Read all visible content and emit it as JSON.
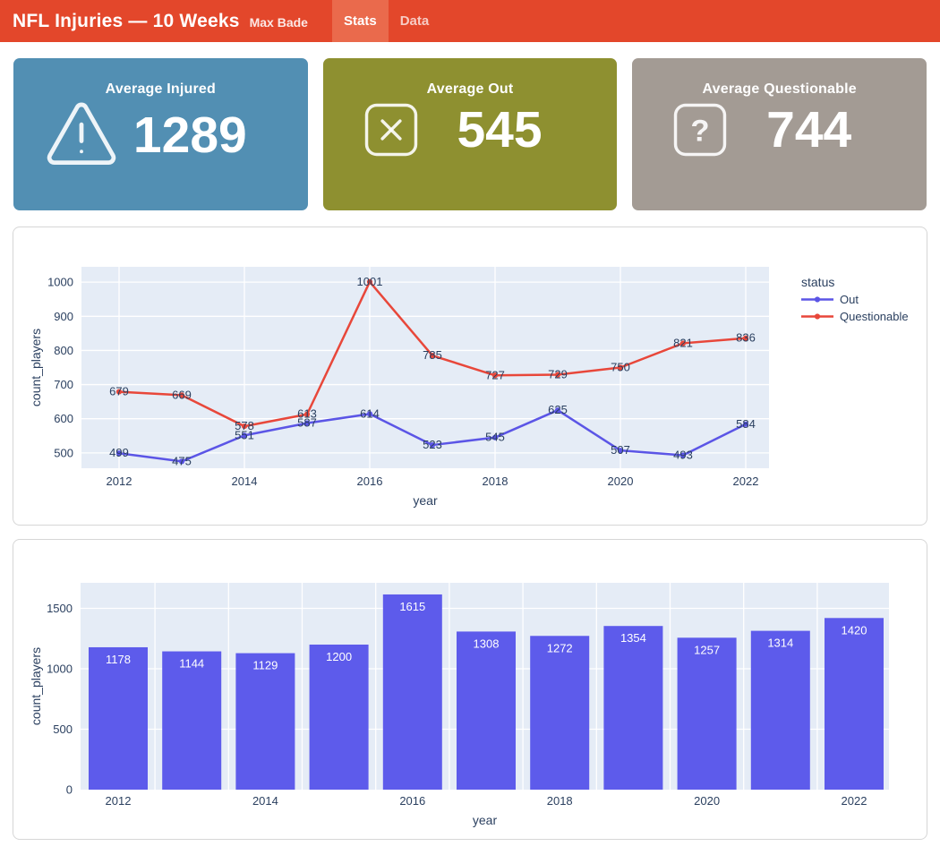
{
  "header": {
    "title": "NFL Injuries — 10 Weeks",
    "subtitle": "Max Bade",
    "tabs": [
      {
        "label": "Stats",
        "active": true
      },
      {
        "label": "Data",
        "active": false
      }
    ]
  },
  "cards": [
    {
      "title": "Average Injured",
      "value": "1289",
      "icon": "warning-triangle-icon",
      "bg": "#528fb3"
    },
    {
      "title": "Average Out",
      "value": "545",
      "icon": "x-square-icon",
      "bg": "#8e9030"
    },
    {
      "title": "Average Questionable",
      "value": "744",
      "icon": "question-square-icon",
      "bg": "#a39b94"
    }
  ],
  "theme": {
    "header_bg": "#e3472b",
    "tab_active_bg": "#ea6a4c",
    "plot_bg": "#e5ecf6",
    "grid_color": "#ffffff",
    "tick_color": "#2a3f5f"
  },
  "chart_data": [
    {
      "type": "line",
      "title": "",
      "xlabel": "year",
      "ylabel": "count_players",
      "legend_title": "status",
      "legend_position": "right",
      "grid": true,
      "x": [
        2012,
        2013,
        2014,
        2015,
        2016,
        2017,
        2018,
        2019,
        2020,
        2021,
        2022
      ],
      "series": [
        {
          "name": "Out",
          "color": "#5b55e6",
          "values": [
            499,
            475,
            551,
            587,
            614,
            523,
            545,
            625,
            507,
            493,
            584
          ]
        },
        {
          "name": "Questionable",
          "color": "#e8473a",
          "values": [
            679,
            669,
            578,
            613,
            1001,
            785,
            727,
            729,
            750,
            821,
            836
          ]
        }
      ],
      "xticks": [
        2012,
        2014,
        2016,
        2018,
        2020,
        2022
      ],
      "yticks": [
        500,
        600,
        700,
        800,
        900,
        1000
      ],
      "ylim": [
        455,
        1045
      ]
    },
    {
      "type": "bar",
      "title": "",
      "xlabel": "year",
      "ylabel": "count_players",
      "grid": true,
      "categories": [
        2012,
        2013,
        2014,
        2015,
        2016,
        2017,
        2018,
        2019,
        2020,
        2021,
        2022
      ],
      "values": [
        1178,
        1144,
        1129,
        1200,
        1615,
        1308,
        1272,
        1354,
        1257,
        1314,
        1420
      ],
      "bar_color": "#5d5beb",
      "xticks": [
        2012,
        2014,
        2016,
        2018,
        2020,
        2022
      ],
      "yticks": [
        0,
        500,
        1000,
        1500
      ],
      "ylim": [
        0,
        1711
      ]
    }
  ]
}
